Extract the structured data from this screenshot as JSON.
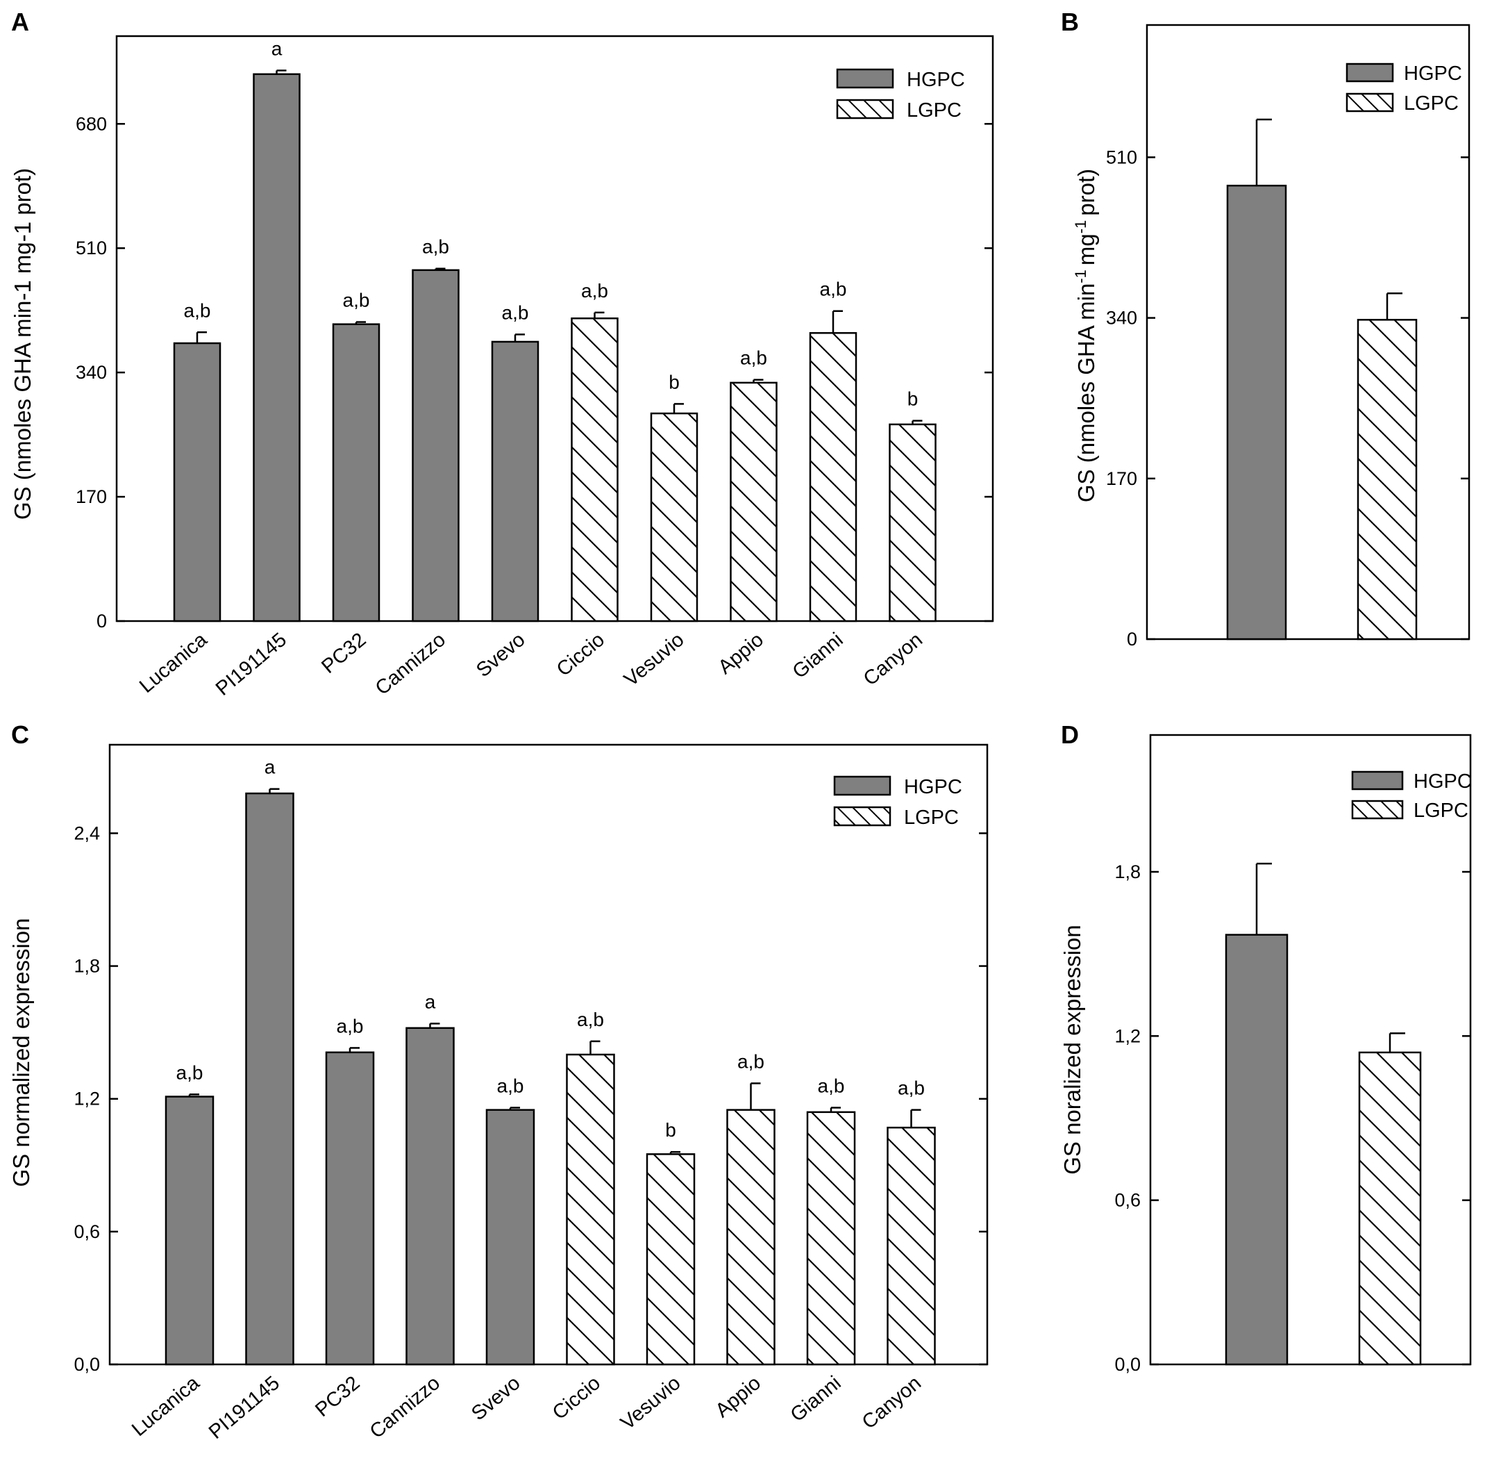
{
  "colors": {
    "hgpc_fill": "#808080",
    "lgpc_fill": "#ffffff",
    "line": "#000000"
  },
  "legend": {
    "hgpc": "HGPC",
    "lgpc": "LGPC"
  },
  "chart_data": [
    {
      "panel": "A",
      "type": "bar",
      "ylabel": "GS (nmoles GHA min-1 mg-1 prot)",
      "ylim": [
        0,
        800
      ],
      "yticks": [
        "0",
        "170",
        "340",
        "510",
        "680"
      ],
      "ytick_values": [
        0,
        170,
        340,
        510,
        680
      ],
      "categories": [
        "Lucanica",
        "PI191145",
        "PC32",
        "Cannizzo",
        "Svevo",
        "Ciccio",
        "Vesuvio",
        "Appio",
        "Gianni",
        "Canyon"
      ],
      "groups": [
        "HGPC",
        "HGPC",
        "HGPC",
        "HGPC",
        "HGPC",
        "LGPC",
        "LGPC",
        "LGPC",
        "LGPC",
        "LGPC"
      ],
      "values": [
        380,
        748,
        406,
        480,
        382,
        414,
        284,
        326,
        394,
        269
      ],
      "errors": [
        15,
        5,
        3,
        2,
        10,
        8,
        13,
        4,
        30,
        5
      ],
      "significance": [
        "a,b",
        "a",
        "a,b",
        "a,b",
        "a,b",
        "a,b",
        "b",
        "a,b",
        "a,b",
        "b"
      ]
    },
    {
      "panel": "B",
      "type": "bar",
      "ylabel_main": "GS (nmoles GHA min",
      "ylabel_sup1": "-1",
      "ylabel_mid": "mg",
      "ylabel_sup2": "-1",
      "ylabel_end": "prot)",
      "ylim": [
        0,
        650
      ],
      "yticks": [
        "0",
        "170",
        "340",
        "510"
      ],
      "ytick_values": [
        0,
        170,
        340,
        510
      ],
      "categories": [
        "HGPC",
        "LGPC"
      ],
      "groups": [
        "HGPC",
        "LGPC"
      ],
      "values": [
        480,
        338
      ],
      "errors": [
        70,
        28
      ]
    },
    {
      "panel": "C",
      "type": "bar",
      "ylabel": "GS normalized expression",
      "ylim": [
        0,
        2.8
      ],
      "yticks": [
        "0,0",
        "0,6",
        "1,2",
        "1,8",
        "2,4"
      ],
      "ytick_values": [
        0,
        0.6,
        1.2,
        1.8,
        2.4
      ],
      "categories": [
        "Lucanica",
        "PI191145",
        "PC32",
        "Cannizzo",
        "Svevo",
        "Ciccio",
        "Vesuvio",
        "Appio",
        "Gianni",
        "Canyon"
      ],
      "groups": [
        "HGPC",
        "HGPC",
        "HGPC",
        "HGPC",
        "HGPC",
        "LGPC",
        "LGPC",
        "LGPC",
        "LGPC",
        "LGPC"
      ],
      "values": [
        1.21,
        2.58,
        1.41,
        1.52,
        1.15,
        1.4,
        0.95,
        1.15,
        1.14,
        1.07
      ],
      "errors": [
        0.01,
        0.02,
        0.02,
        0.02,
        0.01,
        0.06,
        0.01,
        0.12,
        0.02,
        0.08
      ],
      "significance": [
        "a,b",
        "a",
        "a,b",
        "a",
        "a,b",
        "a,b",
        "b",
        "a,b",
        "a,b",
        "a,b"
      ]
    },
    {
      "panel": "D",
      "type": "bar",
      "ylabel": "GS noralized expression",
      "ylim": [
        0,
        2.3
      ],
      "yticks": [
        "0,0",
        "0,6",
        "1,2",
        "1,8"
      ],
      "ytick_values": [
        0,
        0.6,
        1.2,
        1.8
      ],
      "categories": [
        "HGPC",
        "LGPC"
      ],
      "groups": [
        "HGPC",
        "LGPC"
      ],
      "values": [
        1.57,
        1.14
      ],
      "errors": [
        0.26,
        0.07
      ]
    }
  ]
}
